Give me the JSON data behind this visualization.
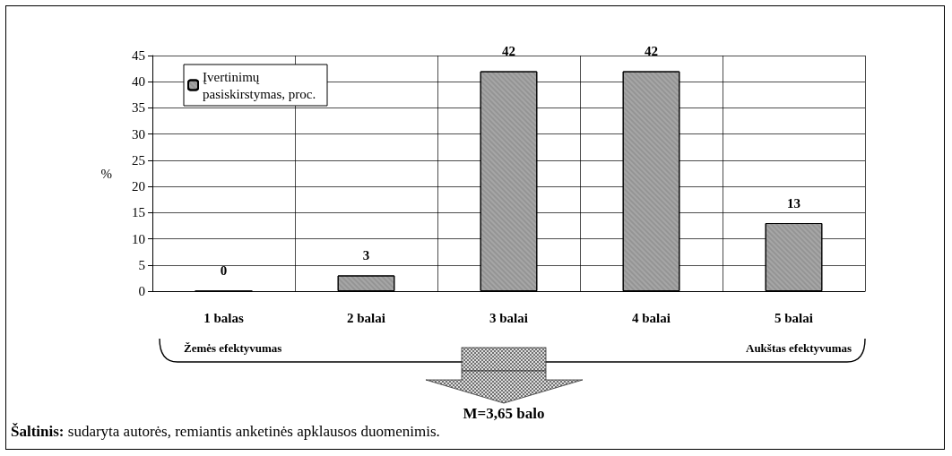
{
  "chart_data": {
    "type": "bar",
    "ylabel": "%",
    "categories": [
      "1 balas",
      "2 balai",
      "3 balai",
      "4 balai",
      "5 balai"
    ],
    "series": [
      {
        "name": "Įvertinimų pasiskirstymas, proc.",
        "color": "#a6a6a6",
        "values": [
          0,
          3,
          42,
          42,
          13
        ]
      }
    ],
    "ylim": [
      0,
      45
    ],
    "yticks": [
      0,
      5,
      10,
      15,
      20,
      25,
      30,
      35,
      40,
      45
    ],
    "grid": true,
    "legend": "top left",
    "data_labels": true,
    "annotations": [
      "Žemės efektyvumas",
      "Aukštas efektyvumas",
      "M=3,65 balo",
      "Šaltinis: sudaryta autorės, remiantis anketinės apklausos duomenimis."
    ]
  }
}
